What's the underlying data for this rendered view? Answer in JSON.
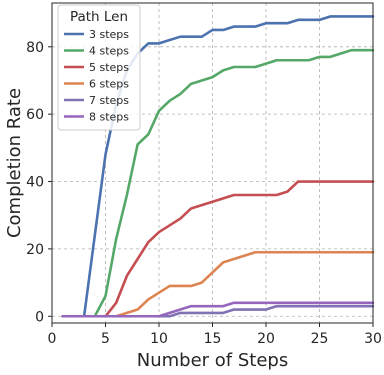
{
  "chart_data": {
    "type": "line",
    "xlabel": "Number of Steps",
    "ylabel": "Completion Rate",
    "xlim": [
      0,
      30
    ],
    "ylim": [
      -2,
      93
    ],
    "xticks": [
      0,
      5,
      10,
      15,
      20,
      25,
      30
    ],
    "yticks": [
      0,
      20,
      40,
      60,
      80
    ],
    "grid": true,
    "legend": {
      "title": "Path Len",
      "placement": "top-left"
    },
    "series": [
      {
        "name": "3 steps",
        "color": "#4c72b0",
        "x": [
          1,
          2,
          3,
          4,
          5,
          6,
          7,
          8,
          9,
          10,
          11,
          12,
          13,
          14,
          15,
          16,
          17,
          18,
          19,
          20,
          21,
          22,
          23,
          24,
          25,
          26,
          27,
          28,
          29,
          30
        ],
        "y": [
          0,
          0,
          0,
          24,
          48,
          63,
          73,
          78,
          81,
          81,
          82,
          83,
          83,
          83,
          85,
          85,
          86,
          86,
          86,
          87,
          87,
          87,
          88,
          88,
          88,
          89,
          89,
          89,
          89,
          89
        ]
      },
      {
        "name": "4 steps",
        "color": "#55a868",
        "x": [
          1,
          2,
          3,
          4,
          5,
          6,
          7,
          8,
          9,
          10,
          11,
          12,
          13,
          14,
          15,
          16,
          17,
          18,
          19,
          20,
          21,
          22,
          23,
          24,
          25,
          26,
          27,
          28,
          29,
          30
        ],
        "y": [
          0,
          0,
          0,
          0,
          6,
          23,
          36,
          51,
          54,
          61,
          64,
          66,
          69,
          70,
          71,
          73,
          74,
          74,
          74,
          75,
          76,
          76,
          76,
          76,
          77,
          77,
          78,
          79,
          79,
          79
        ]
      },
      {
        "name": "5 steps",
        "color": "#c44e52",
        "x": [
          1,
          2,
          3,
          4,
          5,
          6,
          7,
          8,
          9,
          10,
          11,
          12,
          13,
          14,
          15,
          16,
          17,
          18,
          19,
          20,
          21,
          22,
          23,
          24,
          25,
          26,
          27,
          28,
          29,
          30
        ],
        "y": [
          0,
          0,
          0,
          0,
          0,
          4,
          12,
          17,
          22,
          25,
          27,
          29,
          32,
          33,
          34,
          35,
          36,
          36,
          36,
          36,
          36,
          37,
          40,
          40,
          40,
          40,
          40,
          40,
          40,
          40
        ]
      },
      {
        "name": "6 steps",
        "color": "#dd8452",
        "x": [
          1,
          2,
          3,
          4,
          5,
          6,
          7,
          8,
          9,
          10,
          11,
          12,
          13,
          14,
          15,
          16,
          17,
          18,
          19,
          20,
          21,
          22,
          23,
          24,
          25,
          26,
          27,
          28,
          29,
          30
        ],
        "y": [
          0,
          0,
          0,
          0,
          0,
          0,
          1,
          2,
          5,
          7,
          9,
          9,
          9,
          10,
          13,
          16,
          17,
          18,
          19,
          19,
          19,
          19,
          19,
          19,
          19,
          19,
          19,
          19,
          19,
          19
        ]
      },
      {
        "name": "7 steps",
        "color": "#8172b3",
        "x": [
          1,
          2,
          3,
          4,
          5,
          6,
          7,
          8,
          9,
          10,
          11,
          12,
          13,
          14,
          15,
          16,
          17,
          18,
          19,
          20,
          21,
          22,
          23,
          24,
          25,
          26,
          27,
          28,
          29,
          30
        ],
        "y": [
          0,
          0,
          0,
          0,
          0,
          0,
          0,
          0,
          0,
          0,
          0,
          1,
          1,
          1,
          1,
          1,
          2,
          2,
          2,
          2,
          3,
          3,
          3,
          3,
          3,
          3,
          3,
          3,
          3,
          3
        ]
      },
      {
        "name": "8 steps",
        "color": "#9467bd",
        "x": [
          1,
          2,
          3,
          4,
          5,
          6,
          7,
          8,
          9,
          10,
          11,
          12,
          13,
          14,
          15,
          16,
          17,
          18,
          19,
          20,
          21,
          22,
          23,
          24,
          25,
          26,
          27,
          28,
          29,
          30
        ],
        "y": [
          0,
          0,
          0,
          0,
          0,
          0,
          0,
          0,
          0,
          0,
          1,
          2,
          3,
          3,
          3,
          3,
          4,
          4,
          4,
          4,
          4,
          4,
          4,
          4,
          4,
          4,
          4,
          4,
          4,
          4
        ]
      }
    ]
  }
}
